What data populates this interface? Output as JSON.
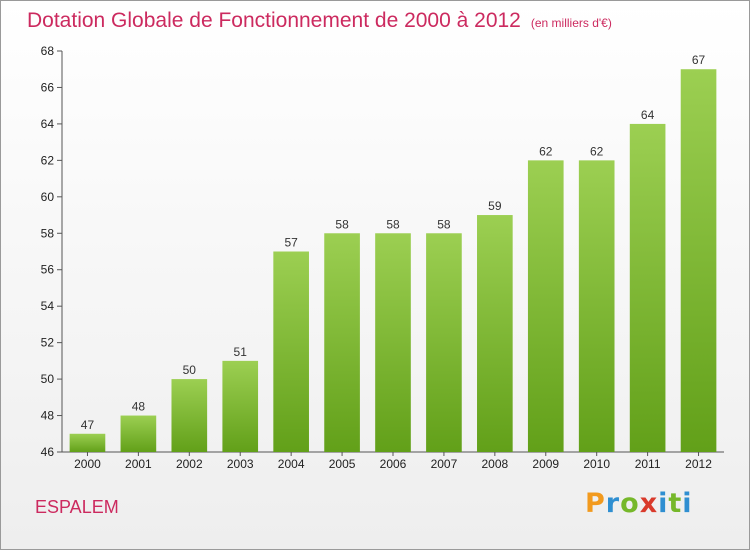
{
  "header": {
    "title": "Dotation Globale de Fonctionnement de 2000 à 2012",
    "unit": "(en milliers d'€)"
  },
  "footer": {
    "commune": "ESPALEM",
    "logo_letters": [
      "P",
      "r",
      "o",
      "x",
      "i",
      "t",
      "i"
    ]
  },
  "colors": {
    "title": "#cc2a5f",
    "bar_top": "#9ccf52",
    "bar_bottom": "#62a019",
    "logo": [
      "#f29a1e",
      "#2f8fd1",
      "#76b82a",
      "#d93a2b",
      "#2f8fd1",
      "#76b82a",
      "#2f8fd1"
    ]
  },
  "chart_data": {
    "type": "bar",
    "categories": [
      "2000",
      "2001",
      "2002",
      "2003",
      "2004",
      "2005",
      "2006",
      "2007",
      "2008",
      "2009",
      "2010",
      "2011",
      "2012"
    ],
    "values": [
      47,
      48,
      50,
      51,
      57,
      58,
      58,
      58,
      59,
      62,
      62,
      64,
      67
    ],
    "ylim": [
      46,
      68
    ],
    "yticks": [
      46,
      48,
      50,
      52,
      54,
      56,
      58,
      60,
      62,
      64,
      66,
      68
    ],
    "grid": false,
    "legend": "none"
  }
}
